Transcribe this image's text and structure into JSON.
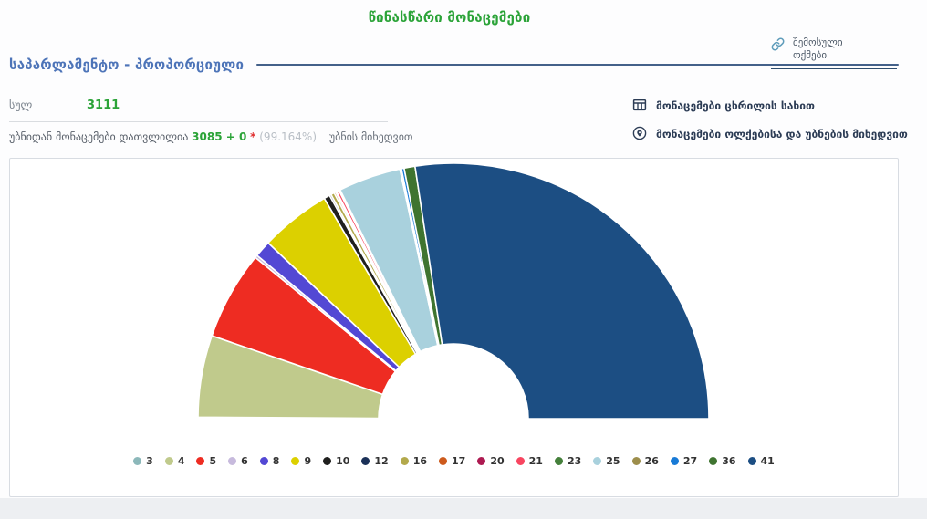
{
  "header": {
    "title": "წინასწარი მონაცემები",
    "received_protocols": "შემოსული ოქმები"
  },
  "section": {
    "title": "საპარლამენტო - პროპორციული",
    "total_label": "სულ",
    "total_value": "3111",
    "counted_text": "უბნიდან მონაცემები დათვლილია",
    "counted_value": "3085 + 0",
    "asterisk": "*",
    "counted_percent": "(99.164%)",
    "counted_by": "უბნის მიხედვით",
    "view_as_table": "მონაცემები ცხრილის სახით",
    "view_by_districts": "მონაცემები ოლქებისა და უბნების მიხედვით"
  },
  "colors": {
    "title_green": "#2ba338",
    "section_blue": "#4d74b8",
    "rule_blue": "#44618a",
    "asterisk_red": "#e03131",
    "counted_value_green": "#2ba338",
    "link_icon_teal": "#5e9cba",
    "view_link_dark": "#2c3c55"
  },
  "chart_data": {
    "type": "pie",
    "subtype": "half-donut",
    "title": "",
    "legend_position": "bottom",
    "note": "labels are party ballot numbers; values are vote shares in percent estimated from arc angles",
    "start_angle_deg": 180,
    "end_angle_deg": 0,
    "series": [
      {
        "label": "3",
        "value": 0.19,
        "color": "#8cb8ba"
      },
      {
        "label": "4",
        "value": 10.17,
        "color": "#c0ca8c"
      },
      {
        "label": "5",
        "value": 11.03,
        "color": "#ee2c22"
      },
      {
        "label": "6",
        "value": 0.33,
        "color": "#c7badd"
      },
      {
        "label": "8",
        "value": 2.06,
        "color": "#5348d4"
      },
      {
        "label": "9",
        "value": 8.81,
        "color": "#dcd000"
      },
      {
        "label": "10",
        "value": 0.74,
        "color": "#20201e"
      },
      {
        "label": "12",
        "value": 0.21,
        "color": "#1b3158"
      },
      {
        "label": "16",
        "value": 0.43,
        "color": "#b3a94c"
      },
      {
        "label": "17",
        "value": 0.21,
        "color": "#cd5a1c"
      },
      {
        "label": "20",
        "value": 0.13,
        "color": "#ad1a51"
      },
      {
        "label": "21",
        "value": 0.32,
        "color": "#f84560"
      },
      {
        "label": "23",
        "value": 0.16,
        "color": "#45803b"
      },
      {
        "label": "25",
        "value": 7.78,
        "color": "#a9d1dd"
      },
      {
        "label": "26",
        "value": 0.19,
        "color": "#9d8e4c"
      },
      {
        "label": "27",
        "value": 0.34,
        "color": "#187ad6"
      },
      {
        "label": "36",
        "value": 1.36,
        "color": "#3f7430"
      },
      {
        "label": "41",
        "value": 53.93,
        "color": "#1c4e83"
      }
    ]
  }
}
